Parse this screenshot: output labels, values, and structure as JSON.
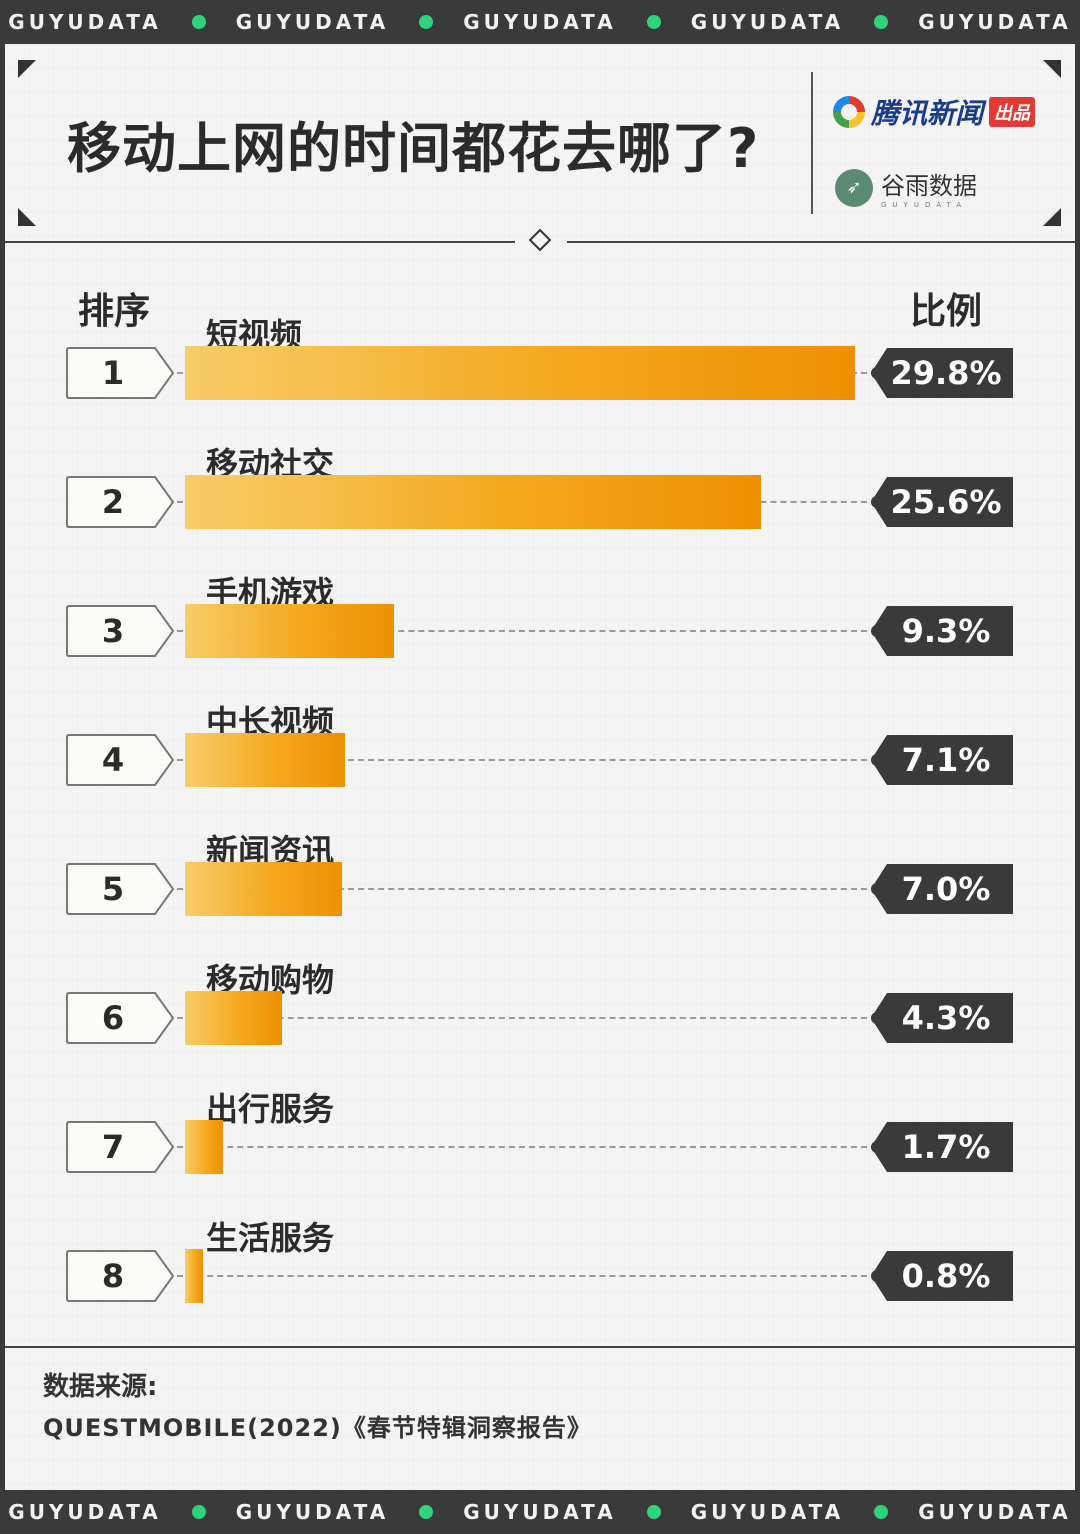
{
  "banner": {
    "words": [
      "GUYUDATA",
      "GUYUDATA",
      "GUYUDATA",
      "GUYUDATA",
      "GUYUDATA"
    ],
    "dot_color": "#2ed47a"
  },
  "header": {
    "title": "移动上网的时间都花去哪了?",
    "logo1_text": "腾讯新闻",
    "logo1_badge": "出品",
    "logo2_text": "谷雨数据",
    "logo2_sub": "GUYUDATA"
  },
  "columns": {
    "rank": "排序",
    "ratio": "比例"
  },
  "chart_data": {
    "type": "bar",
    "orientation": "horizontal",
    "title": "移动上网的时间都花去哪了?",
    "categories": [
      "短视频",
      "移动社交",
      "手机游戏",
      "中长视频",
      "新闻资讯",
      "移动购物",
      "出行服务",
      "生活服务"
    ],
    "ranks": [
      "1",
      "2",
      "3",
      "4",
      "5",
      "6",
      "7",
      "8"
    ],
    "values": [
      29.8,
      25.6,
      9.3,
      7.1,
      7.0,
      4.3,
      1.7,
      0.8
    ],
    "value_labels": [
      "29.8%",
      "25.6%",
      "9.3%",
      "7.1%",
      "7.0%",
      "4.3%",
      "1.7%",
      "0.8%"
    ],
    "unit": "%",
    "xlim": [
      0,
      29.8
    ],
    "bar_color_start": "#f8cc6a",
    "bar_color_end": "#ee9000",
    "grid": false
  },
  "source": {
    "title": "数据来源:",
    "text": "QUESTMOBILE(2022)《春节特辑洞察报告》"
  },
  "colors": {
    "dark": "#3a3a3a",
    "bg": "#f4f4f4",
    "accent": "#f4a91f"
  }
}
